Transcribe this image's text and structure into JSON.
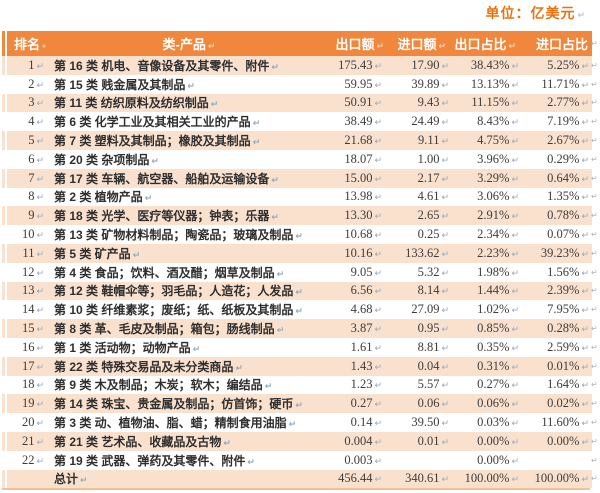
{
  "unit_label": "单位：亿美元",
  "marks": {
    "line_break": "↵"
  },
  "colors": {
    "header_bg": "#F0873C",
    "row_alt_bg": "#FAE1CE",
    "row_bg": "#FFFFFF",
    "unit_text": "#E8730E",
    "header_text": "#FFFFFF",
    "body_text": "#3C3C3C",
    "mark": "#8FA9C2",
    "bottom_rule": "#F1C096"
  },
  "table": {
    "headers": [
      "排名",
      "类-产品",
      "出口额",
      "进口额",
      "出口占比",
      "进口占比"
    ],
    "rows": [
      {
        "rank": "1",
        "product": "第 16 类 机电、音像设备及其零件、附件",
        "export": "175.43",
        "import": "17.90",
        "export_share": "38.43%",
        "import_share": "5.25%"
      },
      {
        "rank": "2",
        "product": "第 15 类 贱金属及其制品",
        "export": "59.95",
        "import": "39.89",
        "export_share": "13.13%",
        "import_share": "11.71%"
      },
      {
        "rank": "3",
        "product": "第 11 类 纺织原料及纺织制品",
        "export": "50.91",
        "import": "9.43",
        "export_share": "11.15%",
        "import_share": "2.77%"
      },
      {
        "rank": "4",
        "product": "第 6 类 化学工业及其相关工业的产品",
        "export": "38.49",
        "import": "24.49",
        "export_share": "8.43%",
        "import_share": "7.19%"
      },
      {
        "rank": "5",
        "product": "第 7 类 塑料及其制品；橡胶及其制品",
        "export": "21.68",
        "import": "9.11",
        "export_share": "4.75%",
        "import_share": "2.67%"
      },
      {
        "rank": "6",
        "product": "第 20 类 杂项制品",
        "export": "18.07",
        "import": "1.00",
        "export_share": "3.96%",
        "import_share": "0.29%"
      },
      {
        "rank": "7",
        "product": "第 17 类 车辆、航空器、船舶及运输设备",
        "export": "15.00",
        "import": "2.17",
        "export_share": "3.29%",
        "import_share": "0.64%"
      },
      {
        "rank": "8",
        "product": "第 2 类 植物产品",
        "export": "13.98",
        "import": "4.61",
        "export_share": "3.06%",
        "import_share": "1.35%"
      },
      {
        "rank": "9",
        "product": "第 18 类 光学、医疗等仪器；钟表；乐器",
        "export": "13.30",
        "import": "2.65",
        "export_share": "2.91%",
        "import_share": "0.78%"
      },
      {
        "rank": "10",
        "product": "第 13 类 矿物材料制品；陶瓷品；玻璃及制品",
        "export": "10.68",
        "import": "0.25",
        "export_share": "2.34%",
        "import_share": "0.07%"
      },
      {
        "rank": "11",
        "product": "第 5 类 矿产品",
        "export": "10.16",
        "import": "133.62",
        "export_share": "2.23%",
        "import_share": "39.23%"
      },
      {
        "rank": "12",
        "product": "第 4 类 食品；饮料、酒及醋；烟草及制品",
        "export": "9.05",
        "import": "5.32",
        "export_share": "1.98%",
        "import_share": "1.56%"
      },
      {
        "rank": "13",
        "product": "第 12 类 鞋帽伞等；羽毛品；人造花；人发品",
        "export": "6.56",
        "import": "8.14",
        "export_share": "1.44%",
        "import_share": "2.39%"
      },
      {
        "rank": "14",
        "product": "第 10 类 纤维素浆；废纸；纸、纸板及其制品",
        "export": "4.68",
        "import": "27.09",
        "export_share": "1.02%",
        "import_share": "7.95%"
      },
      {
        "rank": "15",
        "product": "第 8 类 革、毛皮及制品；箱包；肠线制品",
        "export": "3.87",
        "import": "0.95",
        "export_share": "0.85%",
        "import_share": "0.28%"
      },
      {
        "rank": "16",
        "product": "第 1 类 活动物；动物产品",
        "export": "1.61",
        "import": "8.81",
        "export_share": "0.35%",
        "import_share": "2.59%"
      },
      {
        "rank": "17",
        "product": "第 22 类 特殊交易品及未分类商品",
        "export": "1.43",
        "import": "0.04",
        "export_share": "0.31%",
        "import_share": "0.01%"
      },
      {
        "rank": "18",
        "product": "第 9 类 木及制品；木炭；软木；编结品",
        "export": "1.23",
        "import": "5.57",
        "export_share": "0.27%",
        "import_share": "1.64%"
      },
      {
        "rank": "19",
        "product": "第 14 类 珠宝、贵金属及制品；仿首饰；硬币",
        "export": "0.27",
        "import": "0.06",
        "export_share": "0.06%",
        "import_share": "0.02%"
      },
      {
        "rank": "20",
        "product": "第 3 类 动、植物油、脂、蜡；精制食用油脂",
        "export": "0.14",
        "import": "39.50",
        "export_share": "0.03%",
        "import_share": "11.60%"
      },
      {
        "rank": "21",
        "product": "第 21 类 艺术品、收藏品及古物",
        "export": "0.004",
        "import": "0.01",
        "export_share": "0.00%",
        "import_share": "0.00%"
      },
      {
        "rank": "22",
        "product": "第 19 类 武器、弹药及其零件、附件",
        "export": "0.003",
        "import": "",
        "export_share": "0.00%",
        "import_share": ""
      },
      {
        "rank": "",
        "product": "总计",
        "export": "456.44",
        "import": "340.61",
        "export_share": "100.00%",
        "import_share": "100.00%"
      }
    ]
  }
}
